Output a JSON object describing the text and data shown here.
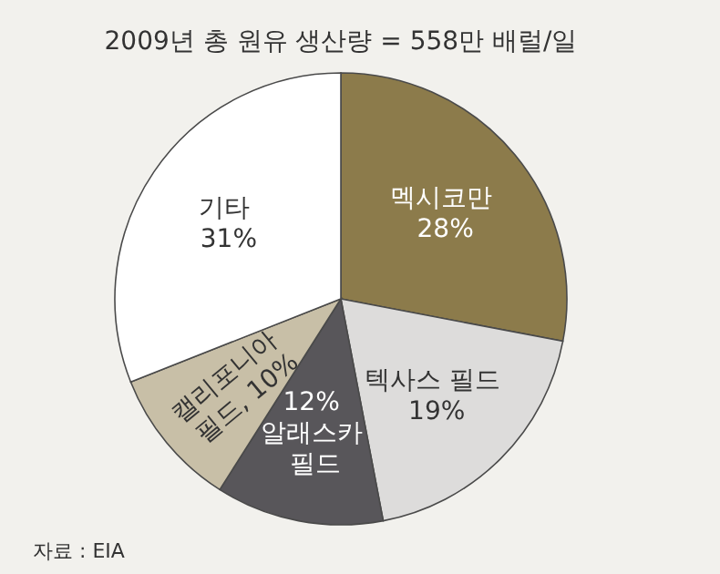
{
  "chart_data": {
    "type": "pie",
    "title": "2009년 총 원유 생산량 = 558만 배럴/일",
    "categories": [
      "멕시코만",
      "텍사스 필드",
      "알래스카 필드",
      "캘리포니아 필드",
      "기타"
    ],
    "values": [
      28,
      19,
      12,
      10,
      31
    ],
    "value_labels": [
      "28%",
      "19%",
      "12%",
      "10%",
      "31%"
    ],
    "colors": [
      "#8c7b4b",
      "#dddcdb",
      "#58565a",
      "#c8bfa7",
      "#ffffff"
    ],
    "annotations": [
      "자료 : EIA"
    ],
    "legend": false
  }
}
